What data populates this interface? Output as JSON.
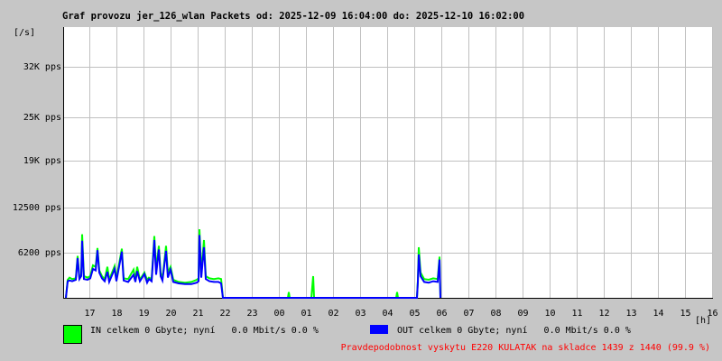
{
  "chart_data": {
    "type": "line",
    "title": "Graf provozu jer_126_wlan Packets od: 2025-12-09 16:04:00 do: 2025-12-10 16:02:00",
    "ylabel": "[/s]",
    "xlabel": "[h]",
    "xlim": [
      "2025-12-09 16:04",
      "2025-12-10 16:04"
    ],
    "ylim": [
      0,
      37500
    ],
    "y_ticks": [
      {
        "value": 6200,
        "label": "6200 pps"
      },
      {
        "value": 12500,
        "label": "12500 pps"
      },
      {
        "value": 19000,
        "label": "19K pps"
      },
      {
        "value": 25000,
        "label": "25K pps"
      },
      {
        "value": 32000,
        "label": "32K pps"
      }
    ],
    "x_ticks": [
      "17",
      "18",
      "19",
      "20",
      "21",
      "22",
      "23",
      "00",
      "01",
      "02",
      "03",
      "04",
      "05",
      "06",
      "07",
      "08",
      "09",
      "10",
      "11",
      "12",
      "13",
      "14",
      "15",
      "16"
    ],
    "grid": true,
    "series": [
      {
        "name": "IN",
        "color": "#00ff00",
        "points": [
          [
            "16:08",
            0
          ],
          [
            "16:12",
            2500
          ],
          [
            "16:16",
            2800
          ],
          [
            "16:22",
            2600
          ],
          [
            "16:30",
            2700
          ],
          [
            "16:34",
            5800
          ],
          [
            "16:38",
            2800
          ],
          [
            "16:42",
            3200
          ],
          [
            "16:44",
            8800
          ],
          [
            "16:48",
            3000
          ],
          [
            "16:56",
            2800
          ],
          [
            "17:02",
            3000
          ],
          [
            "17:08",
            4500
          ],
          [
            "17:14",
            4300
          ],
          [
            "17:18",
            6900
          ],
          [
            "17:22",
            3800
          ],
          [
            "17:28",
            3000
          ],
          [
            "17:34",
            2600
          ],
          [
            "17:40",
            4300
          ],
          [
            "17:44",
            2500
          ],
          [
            "17:56",
            4400
          ],
          [
            "18:00",
            2600
          ],
          [
            "18:12",
            6800
          ],
          [
            "18:16",
            2700
          ],
          [
            "18:26",
            2600
          ],
          [
            "18:38",
            3900
          ],
          [
            "18:42",
            2500
          ],
          [
            "18:46",
            4300
          ],
          [
            "18:52",
            2500
          ],
          [
            "19:02",
            3500
          ],
          [
            "19:08",
            2500
          ],
          [
            "19:12",
            2800
          ],
          [
            "19:18",
            2600
          ],
          [
            "19:24",
            8550
          ],
          [
            "19:28",
            4000
          ],
          [
            "19:34",
            7200
          ],
          [
            "19:38",
            3500
          ],
          [
            "19:42",
            2600
          ],
          [
            "19:50",
            7200
          ],
          [
            "19:54",
            3500
          ],
          [
            "20:00",
            4300
          ],
          [
            "20:06",
            2500
          ],
          [
            "20:18",
            2200
          ],
          [
            "20:32",
            2100
          ],
          [
            "20:46",
            2200
          ],
          [
            "20:58",
            2500
          ],
          [
            "21:02",
            2700
          ],
          [
            "21:04",
            9500
          ],
          [
            "21:08",
            3500
          ],
          [
            "21:14",
            8000
          ],
          [
            "21:18",
            3000
          ],
          [
            "21:26",
            2700
          ],
          [
            "21:36",
            2600
          ],
          [
            "21:46",
            2700
          ],
          [
            "21:52",
            2600
          ],
          [
            "21:56",
            0
          ],
          [
            "00:20",
            0
          ],
          [
            "00:22",
            800
          ],
          [
            "00:24",
            0
          ],
          [
            "01:12",
            0
          ],
          [
            "01:14",
            1500
          ],
          [
            "01:16",
            3000
          ],
          [
            "01:18",
            0
          ],
          [
            "04:20",
            0
          ],
          [
            "04:22",
            800
          ],
          [
            "04:24",
            0
          ],
          [
            "05:06",
            0
          ],
          [
            "05:08",
            2400
          ],
          [
            "05:10",
            7000
          ],
          [
            "05:14",
            3500
          ],
          [
            "05:22",
            2600
          ],
          [
            "05:32",
            2500
          ],
          [
            "05:42",
            2700
          ],
          [
            "05:52",
            2600
          ],
          [
            "05:56",
            5700
          ],
          [
            "05:58",
            0
          ]
        ]
      },
      {
        "name": "OUT",
        "color": "#0000ff",
        "points": [
          [
            "16:08",
            0
          ],
          [
            "16:12",
            2300
          ],
          [
            "16:16",
            2400
          ],
          [
            "16:22",
            2300
          ],
          [
            "16:30",
            2500
          ],
          [
            "16:34",
            5500
          ],
          [
            "16:38",
            2600
          ],
          [
            "16:42",
            3000
          ],
          [
            "16:44",
            7900
          ],
          [
            "16:48",
            2600
          ],
          [
            "16:56",
            2500
          ],
          [
            "17:02",
            2700
          ],
          [
            "17:08",
            4000
          ],
          [
            "17:14",
            3800
          ],
          [
            "17:18",
            6600
          ],
          [
            "17:22",
            3500
          ],
          [
            "17:28",
            2700
          ],
          [
            "17:34",
            2300
          ],
          [
            "17:40",
            3600
          ],
          [
            "17:44",
            2200
          ],
          [
            "17:56",
            4000
          ],
          [
            "18:00",
            2300
          ],
          [
            "18:12",
            6400
          ],
          [
            "18:16",
            2400
          ],
          [
            "18:26",
            2200
          ],
          [
            "18:38",
            3200
          ],
          [
            "18:42",
            2200
          ],
          [
            "18:46",
            3700
          ],
          [
            "18:52",
            2300
          ],
          [
            "19:02",
            3300
          ],
          [
            "19:08",
            2100
          ],
          [
            "19:12",
            2600
          ],
          [
            "19:18",
            2300
          ],
          [
            "19:24",
            8000
          ],
          [
            "19:28",
            3200
          ],
          [
            "19:34",
            6700
          ],
          [
            "19:38",
            3000
          ],
          [
            "19:42",
            2400
          ],
          [
            "19:50",
            6500
          ],
          [
            "19:54",
            2800
          ],
          [
            "20:00",
            3900
          ],
          [
            "20:06",
            2200
          ],
          [
            "20:18",
            2000
          ],
          [
            "20:32",
            1900
          ],
          [
            "20:46",
            1900
          ],
          [
            "20:58",
            2100
          ],
          [
            "21:02",
            2300
          ],
          [
            "21:04",
            8700
          ],
          [
            "21:08",
            2800
          ],
          [
            "21:14",
            7000
          ],
          [
            "21:18",
            2600
          ],
          [
            "21:26",
            2300
          ],
          [
            "21:36",
            2200
          ],
          [
            "21:46",
            2200
          ],
          [
            "21:52",
            2000
          ],
          [
            "21:56",
            0
          ],
          [
            "05:06",
            0
          ],
          [
            "05:08",
            2200
          ],
          [
            "05:10",
            6000
          ],
          [
            "05:14",
            3000
          ],
          [
            "05:22",
            2200
          ],
          [
            "05:32",
            2100
          ],
          [
            "05:42",
            2300
          ],
          [
            "05:52",
            2200
          ],
          [
            "05:56",
            5300
          ],
          [
            "05:58",
            0
          ]
        ]
      }
    ]
  },
  "legend": {
    "in_text": "IN celkem 0 Gbyte; nyní   0.0 Mbit/s 0.0 %",
    "out_text": "OUT celkem 0 Gbyte; nyní   0.0 Mbit/s 0.0 %",
    "in_color": "#00ff00",
    "out_color": "#0000ff"
  },
  "footer": {
    "probability_text": "Pravdepodobnost vyskytu E220 KULATAK na skladce 1439 z 1440 (99.9 %)",
    "color": "#ff0000"
  }
}
